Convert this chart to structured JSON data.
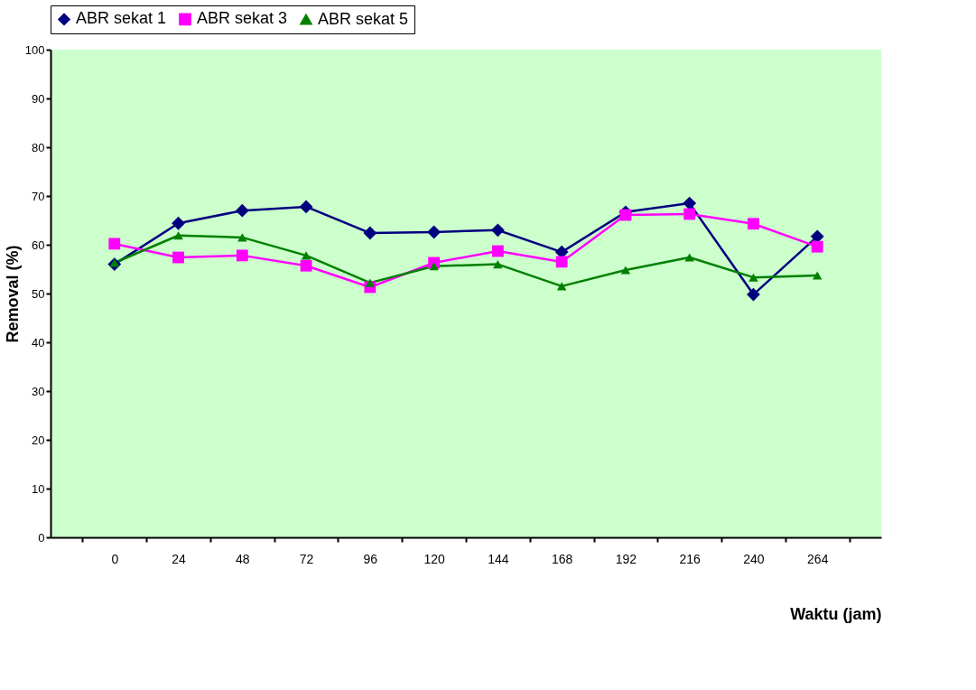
{
  "chart_data": {
    "type": "line",
    "xlabel": "Waktu (jam)",
    "ylabel": "Removal (%)",
    "categories": [
      "0",
      "24",
      "48",
      "72",
      "96",
      "120",
      "144",
      "168",
      "192",
      "216",
      "240",
      "264"
    ],
    "ylim": [
      0,
      100
    ],
    "yticks": [
      0,
      10,
      20,
      30,
      40,
      50,
      60,
      70,
      80,
      90,
      100
    ],
    "grid": false,
    "legend": "top",
    "line_style": "solid",
    "series": [
      {
        "name": "ABR sekat 1",
        "color": "#000080",
        "marker": "diamond",
        "values": [
          56,
          64.4,
          67,
          67.8,
          62.4,
          62.6,
          63,
          58.5,
          66.7,
          68.5,
          49.8,
          61.7
        ]
      },
      {
        "name": "ABR sekat 3",
        "color": "#ff00ff",
        "marker": "square",
        "values": [
          60.2,
          57.4,
          57.8,
          55.7,
          51.3,
          56.3,
          58.7,
          56.5,
          66.1,
          66.3,
          64.3,
          59.6
        ]
      },
      {
        "name": "ABR sekat 5",
        "color": "#008000",
        "marker": "triangle",
        "values": [
          56.3,
          61.9,
          61.5,
          57.8,
          52.2,
          55.6,
          56,
          51.5,
          54.8,
          57.4,
          53.3,
          53.7
        ]
      }
    ]
  }
}
